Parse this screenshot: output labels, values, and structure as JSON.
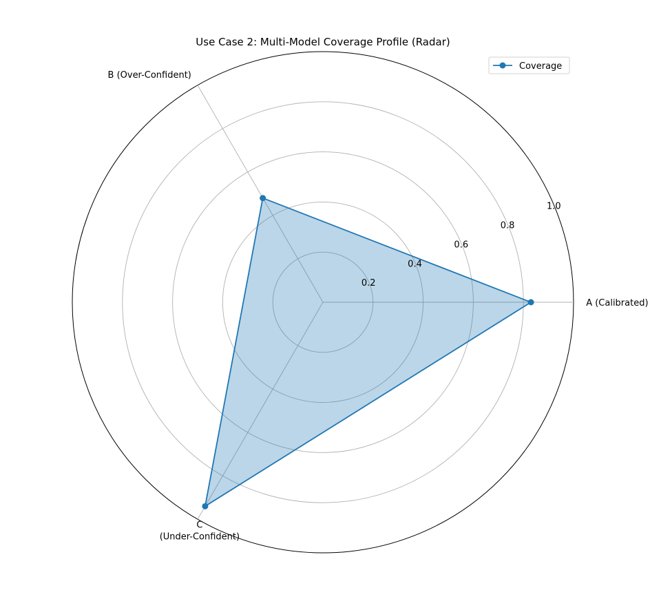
{
  "chart_data": {
    "type": "radar",
    "title": "Use Case 2: Multi-Model Coverage Profile (Radar)",
    "categories": [
      "A (Calibrated)",
      "B (Over-Confident)",
      "C\n(Under-Confident)"
    ],
    "series": [
      {
        "name": "Coverage",
        "values": [
          0.83,
          0.48,
          0.94
        ]
      }
    ],
    "rlim": [
      0,
      1.0
    ],
    "r_ticks": [
      0.2,
      0.4,
      0.6,
      0.8,
      1.0
    ],
    "r_tick_labels": [
      "0.2",
      "0.4",
      "0.6",
      "0.8",
      "1.0"
    ],
    "grid": true,
    "legend": "top-right",
    "colors": {
      "line": "#1f77b4",
      "fill": "#1f77b4",
      "grid": "#b0b0b0"
    }
  }
}
